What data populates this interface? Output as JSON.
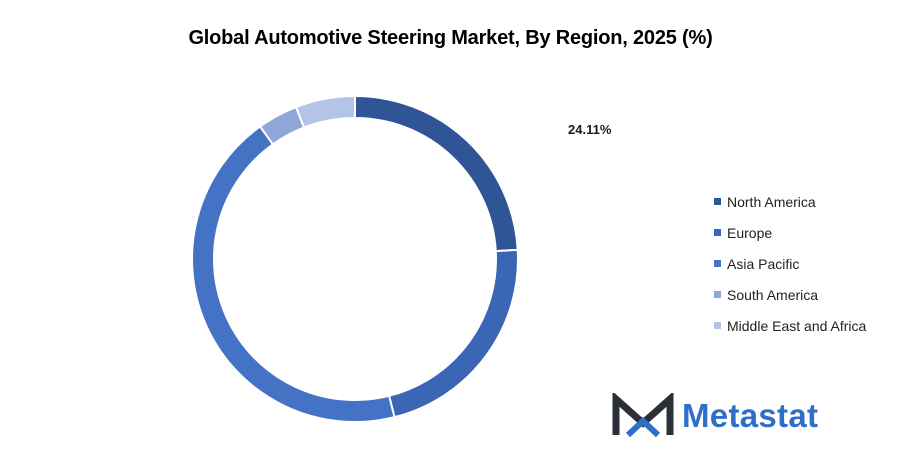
{
  "chart_data": {
    "type": "pie",
    "title": "Global Automotive Steering Market, By Region, 2025 (%)",
    "categories": [
      "North America",
      "Europe",
      "Asia Pacific",
      "South America",
      "Middle East and Africa"
    ],
    "values": [
      24.11,
      22.0,
      44.0,
      4.0,
      5.89
    ],
    "data_labels": [
      "24.11%",
      null,
      null,
      null,
      null
    ],
    "colors": [
      "#2f5597",
      "#3a66b5",
      "#4472c4",
      "#8fa6d8",
      "#b4c4e6"
    ],
    "donut": true,
    "legend_position": "right"
  },
  "brand": {
    "name": "Metastat",
    "icon": "metastat-m-logo-icon",
    "colors": {
      "dark": "#2b2f38",
      "accent": "#2e6fc8"
    }
  }
}
